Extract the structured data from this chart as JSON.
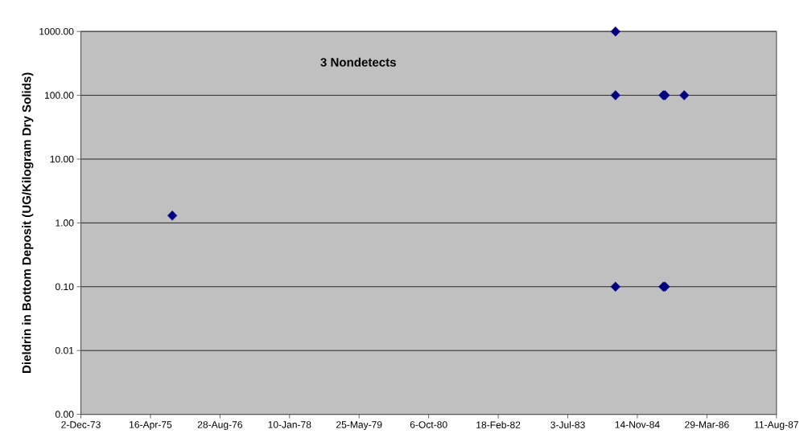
{
  "chart_data": {
    "type": "scatter",
    "ylabel": "Dieldrin in Bottom Deposit (UG/Kilogram Dry Solids)",
    "annotations": [
      "3 Nondetects"
    ],
    "x": [
      "1975-09-20",
      "1984-06-10",
      "1984-06-10",
      "1984-06-10",
      "1985-05-20",
      "1985-06-01",
      "1985-05-20",
      "1985-06-01",
      "1985-10-17"
    ],
    "values": [
      1.3,
      1000,
      100,
      0.1,
      100,
      100,
      0.1,
      0.1,
      100
    ],
    "color": "#000080",
    "marker": "diamond",
    "log": "y",
    "grid": "y",
    "xlim": [
      "1973-12-02",
      "1987-08-11"
    ],
    "xticks": [
      {
        "value": "1973-12-02",
        "label": "2-Dec-73"
      },
      {
        "value": "1975-04-16",
        "label": "16-Apr-75"
      },
      {
        "value": "1976-08-28",
        "label": "28-Aug-76"
      },
      {
        "value": "1978-01-10",
        "label": "10-Jan-78"
      },
      {
        "value": "1979-05-25",
        "label": "25-May-79"
      },
      {
        "value": "1980-10-06",
        "label": "6-Oct-80"
      },
      {
        "value": "1982-02-18",
        "label": "18-Feb-82"
      },
      {
        "value": "1983-07-03",
        "label": "3-Jul-83"
      },
      {
        "value": "1984-11-14",
        "label": "14-Nov-84"
      },
      {
        "value": "1986-03-29",
        "label": "29-Mar-86"
      },
      {
        "value": "1987-08-11",
        "label": "11-Aug-87"
      }
    ],
    "ylim": [
      0.001,
      1000
    ],
    "yticks": [
      {
        "value": 0.001,
        "label": "0.00"
      },
      {
        "value": 0.01,
        "label": "0.01"
      },
      {
        "value": 0.1,
        "label": "0.10"
      },
      {
        "value": 1,
        "label": "1.00"
      },
      {
        "value": 10,
        "label": "10.00"
      },
      {
        "value": 100,
        "label": "100.00"
      },
      {
        "value": 1000,
        "label": "1000.00"
      }
    ]
  }
}
